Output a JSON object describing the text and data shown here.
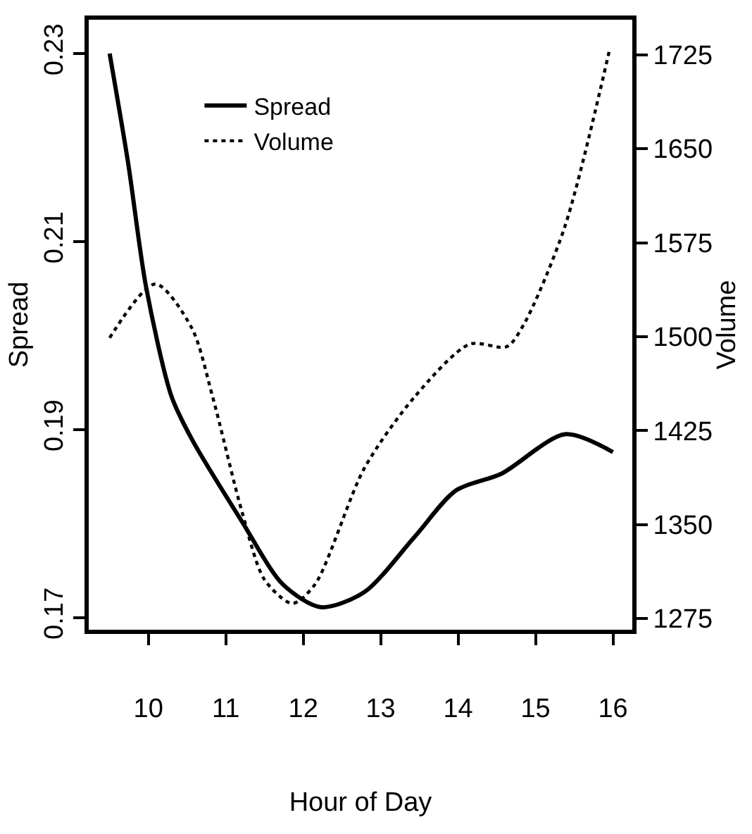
{
  "chart_data": {
    "type": "line",
    "xlabel": "Hour of Day",
    "ylabel": "Spread",
    "y2label": "Volume",
    "xlim": [
      9.23,
      16.25
    ],
    "xticks": [
      10,
      11,
      12,
      13,
      14,
      15,
      16
    ],
    "ylim": [
      0.1687,
      0.2336
    ],
    "yticks": [
      0.17,
      0.19,
      0.21,
      0.23
    ],
    "y2lim": [
      1266,
      1753
    ],
    "y2ticks": [
      1275,
      1350,
      1425,
      1500,
      1575,
      1650,
      1725
    ],
    "legend": "top left",
    "marker": "none",
    "series": [
      {
        "name": "Spread",
        "color": "#000000",
        "line_style": "solid",
        "x": [
          9.5,
          9.74,
          9.97,
          10.3,
          10.56,
          11.21,
          11.74,
          12.23,
          12.79,
          13.44,
          13.97,
          14.56,
          15.38,
          16
        ],
        "values": [
          0.23,
          0.2183,
          0.2052,
          0.1935,
          0.189,
          0.1802,
          0.1735,
          0.1711,
          0.1727,
          0.1786,
          0.1835,
          0.1853,
          0.1895,
          0.1876
        ]
      },
      {
        "name": "Volume",
        "color": "#000000",
        "line_style": "dotted",
        "axis": "y2",
        "x": [
          9.5,
          10.09,
          10.56,
          10.83,
          11.21,
          11.5,
          11.86,
          12.15,
          12.79,
          13.44,
          14.15,
          14.63,
          14.86,
          15.38,
          15.96
        ],
        "values": [
          1499,
          1542,
          1507,
          1452,
          1360,
          1306,
          1287,
          1302,
          1395,
          1452,
          1494,
          1492,
          1511,
          1588,
          1730
        ]
      }
    ]
  }
}
